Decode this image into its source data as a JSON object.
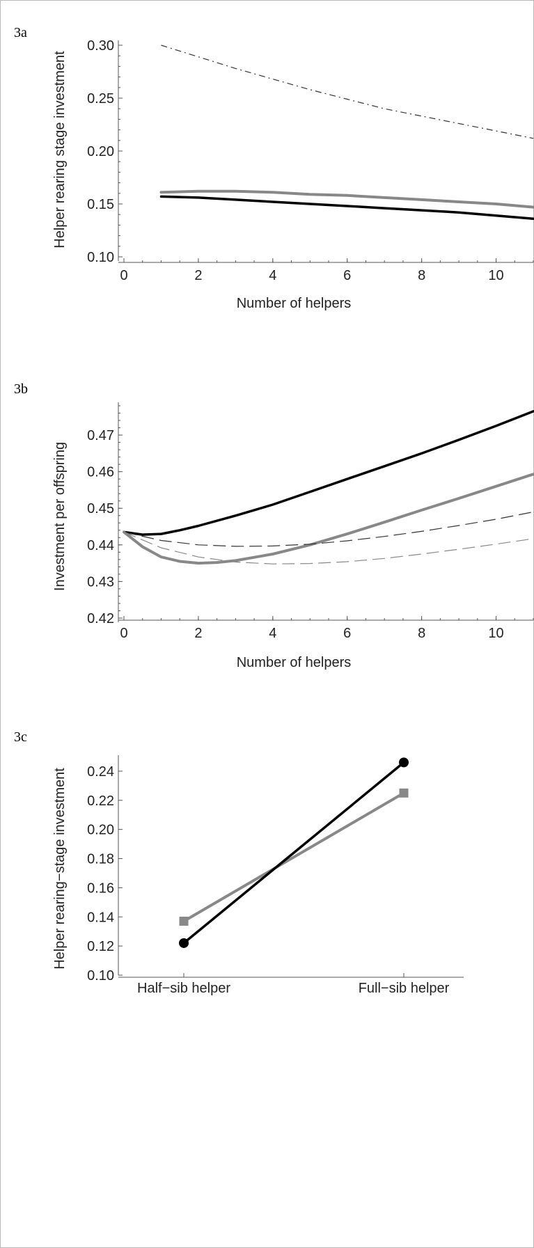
{
  "panels": {
    "a": {
      "label": "3a"
    },
    "b": {
      "label": "3b"
    },
    "c": {
      "label": "3c"
    }
  },
  "chart_data": [
    {
      "type": "line",
      "xlabel": "Number of helpers",
      "ylabel": "Helper rearing  stage investment",
      "xlim": [
        0,
        11
      ],
      "ylim": [
        0.1,
        0.3
      ],
      "xticks": [
        0,
        2,
        4,
        6,
        8,
        10
      ],
      "yticks": [
        0.1,
        0.15,
        0.2,
        0.25,
        0.3
      ],
      "xtick_labels": [
        "0",
        "2",
        "4",
        "6",
        "8",
        "10"
      ],
      "ytick_labels": [
        "0.10",
        "0.15",
        "0.20",
        "0.25",
        "0.30"
      ],
      "grid": false,
      "series": [
        {
          "style": "dash-dot",
          "color": "#333333",
          "width": 1.2,
          "x": [
            1,
            2,
            3,
            4,
            5,
            6,
            7,
            8,
            9,
            10,
            11
          ],
          "y": [
            0.3,
            0.289,
            0.278,
            0.268,
            0.258,
            0.249,
            0.24,
            0.233,
            0.226,
            0.219,
            0.212
          ]
        },
        {
          "style": "solid",
          "color": "#888888",
          "width": 4,
          "x": [
            1,
            2,
            3,
            4,
            5,
            6,
            7,
            8,
            9,
            10,
            11
          ],
          "y": [
            0.161,
            0.162,
            0.162,
            0.161,
            0.159,
            0.158,
            0.156,
            0.154,
            0.152,
            0.15,
            0.147
          ]
        },
        {
          "style": "solid",
          "color": "#000000",
          "width": 3.5,
          "x": [
            1,
            2,
            3,
            4,
            5,
            6,
            7,
            8,
            9,
            10,
            11
          ],
          "y": [
            0.157,
            0.156,
            0.154,
            0.152,
            0.15,
            0.148,
            0.146,
            0.144,
            0.142,
            0.139,
            0.136
          ]
        }
      ]
    },
    {
      "type": "line",
      "xlabel": "Number of helpers",
      "ylabel": "Investment per offspring",
      "xlim": [
        0,
        11
      ],
      "ylim": [
        0.42,
        0.478
      ],
      "xticks": [
        0,
        2,
        4,
        6,
        8,
        10
      ],
      "yticks": [
        0.42,
        0.43,
        0.44,
        0.45,
        0.46,
        0.47
      ],
      "xtick_labels": [
        "0",
        "2",
        "4",
        "6",
        "8",
        "10"
      ],
      "ytick_labels": [
        "0.42",
        "0.43",
        "0.44",
        "0.45",
        "0.46",
        "0.47"
      ],
      "grid": false,
      "series": [
        {
          "style": "solid",
          "color": "#000000",
          "width": 3.5,
          "x": [
            0,
            0.5,
            1,
            1.5,
            2,
            3,
            4,
            5,
            6,
            7,
            8,
            9,
            10,
            11
          ],
          "y": [
            0.4435,
            0.4428,
            0.443,
            0.444,
            0.4452,
            0.448,
            0.451,
            0.4545,
            0.458,
            0.4615,
            0.465,
            0.4687,
            0.4725,
            0.4765
          ]
        },
        {
          "style": "solid",
          "color": "#888888",
          "width": 4,
          "x": [
            0,
            0.5,
            1,
            1.5,
            2,
            2.5,
            3,
            4,
            5,
            6,
            7,
            8,
            9,
            10,
            11
          ],
          "y": [
            0.4435,
            0.4395,
            0.4367,
            0.4355,
            0.435,
            0.4352,
            0.4357,
            0.4375,
            0.44,
            0.443,
            0.4462,
            0.4495,
            0.4527,
            0.456,
            0.4593
          ]
        },
        {
          "style": "dashed",
          "color": "#333333",
          "width": 1.2,
          "x": [
            0,
            1,
            2,
            3,
            4,
            5,
            6,
            7,
            8,
            9,
            10,
            11
          ],
          "y": [
            0.4435,
            0.4412,
            0.44,
            0.4396,
            0.4397,
            0.4402,
            0.4411,
            0.4423,
            0.4437,
            0.4453,
            0.447,
            0.449
          ]
        },
        {
          "style": "dashed",
          "color": "#888888",
          "width": 1.2,
          "x": [
            0,
            1,
            2,
            3,
            4,
            5,
            6,
            7,
            8,
            9,
            10,
            11
          ],
          "y": [
            0.4435,
            0.4392,
            0.4367,
            0.4353,
            0.4348,
            0.4349,
            0.4354,
            0.4363,
            0.4375,
            0.4388,
            0.4402,
            0.4417
          ]
        }
      ]
    },
    {
      "type": "line",
      "ylabel": "Helper rearing−stage investment",
      "categories": [
        "Half−sib helper",
        "Full−sib helper"
      ],
      "ylim": [
        0.1,
        0.25
      ],
      "yticks": [
        0.1,
        0.12,
        0.14,
        0.16,
        0.18,
        0.2,
        0.22,
        0.24
      ],
      "ytick_labels": [
        "0.10",
        "0.12",
        "0.14",
        "0.16",
        "0.18",
        "0.20",
        "0.22",
        "0.24"
      ],
      "grid": false,
      "series": [
        {
          "style": "solid",
          "color": "#888888",
          "width": 4,
          "marker": "square",
          "values": [
            0.137,
            0.225
          ]
        },
        {
          "style": "solid",
          "color": "#000000",
          "width": 3.5,
          "marker": "circle",
          "values": [
            0.122,
            0.246
          ]
        }
      ]
    }
  ]
}
